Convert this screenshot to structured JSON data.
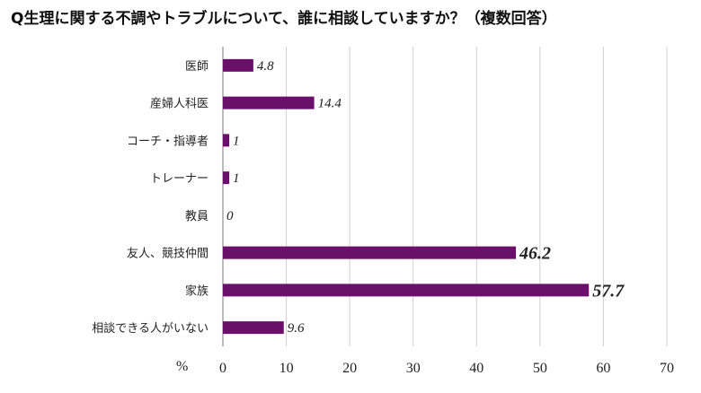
{
  "title": "Q生理に関する不調やトラブルについて、誰に相談していますか？（複数回答）",
  "colors": {
    "bar": "#6a0f6a",
    "highlight": "#d42b2b",
    "grid": "#d0d0d0",
    "axis": "#7a7a7a"
  },
  "chart_data": {
    "type": "bar",
    "orientation": "horizontal",
    "title": "Q生理に関する不調やトラブルについて、誰に相談していますか？（複数回答）",
    "xlabel": "",
    "ylabel": "",
    "unit": "%",
    "xlim": [
      0,
      70
    ],
    "xticks": [
      0,
      10,
      20,
      30,
      40,
      50,
      60,
      70
    ],
    "grid": true,
    "legend": "none",
    "categories": [
      "医師",
      "産婦人科医",
      "コーチ・指導者",
      "トレーナー",
      "教員",
      "友人、競技仲間",
      "家族",
      "相談できる人がいない"
    ],
    "values": [
      4.8,
      14.4,
      1,
      1,
      0,
      46.2,
      57.7,
      9.6
    ],
    "value_labels": [
      "4.8",
      "14.4",
      "1",
      "1",
      "0",
      "46.2",
      "57.7",
      "9.6"
    ],
    "highlighted": [
      false,
      false,
      false,
      false,
      false,
      true,
      true,
      false
    ]
  }
}
